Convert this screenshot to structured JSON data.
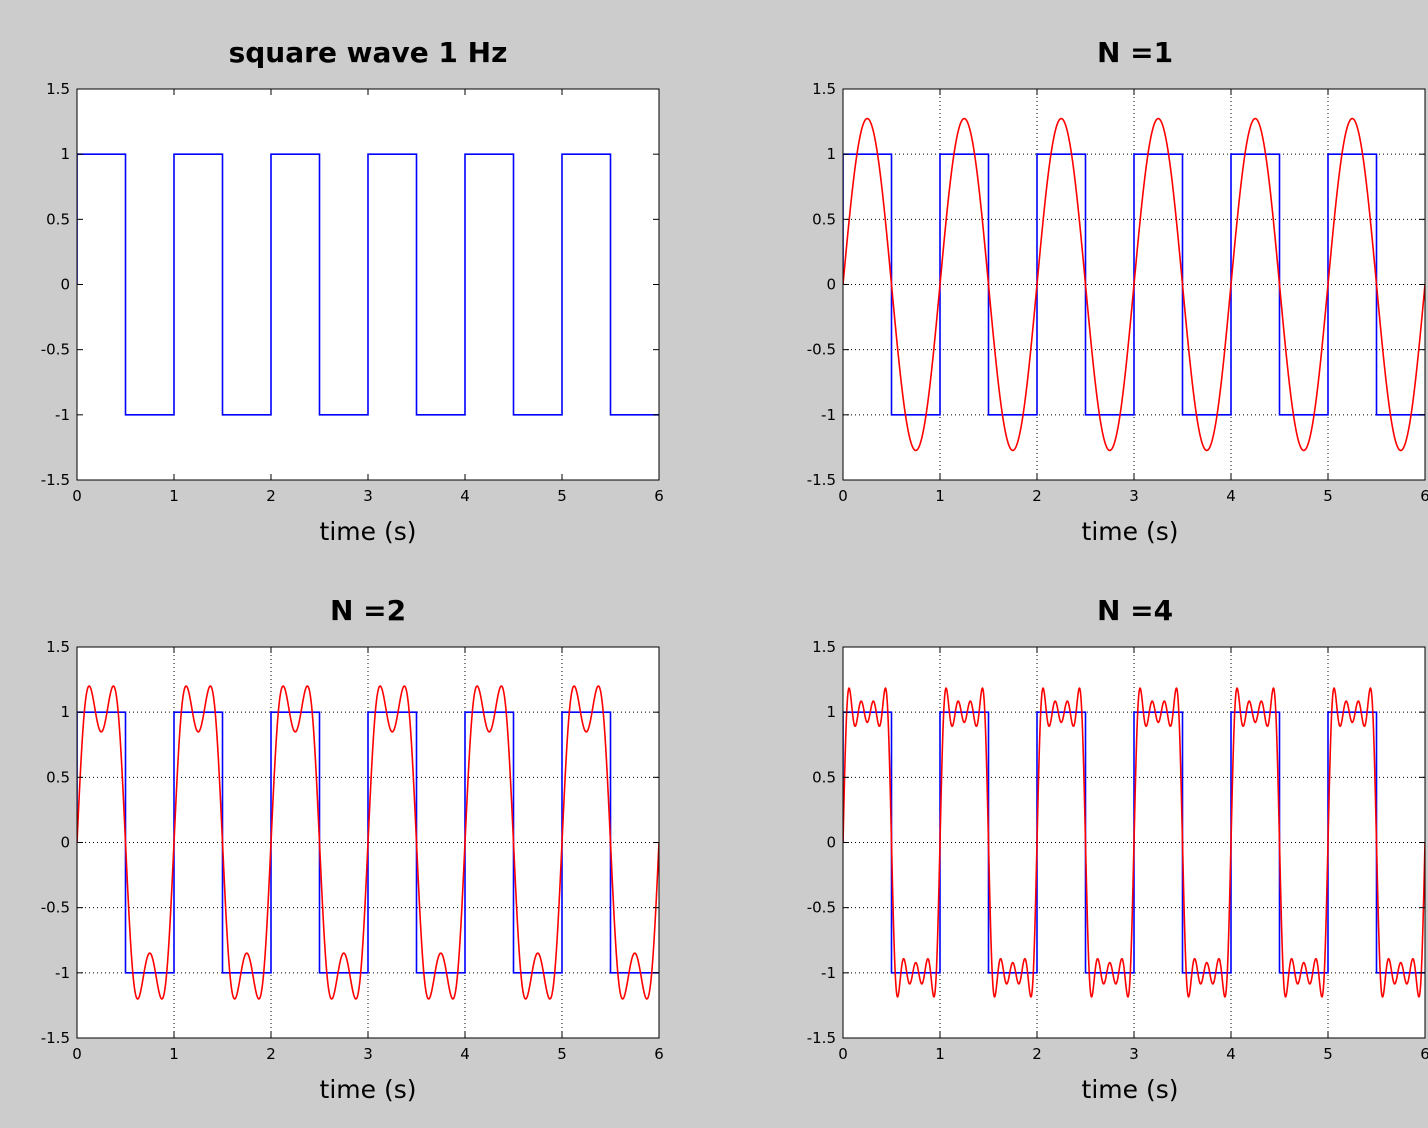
{
  "figure": {
    "background": "#cccccc",
    "axes_background": "#ffffff"
  },
  "chart_data": [
    {
      "type": "line",
      "title": "square wave 1 Hz",
      "xlabel": "time (s)",
      "ylabel": "",
      "xlim": [
        0,
        6
      ],
      "ylim": [
        -1.5,
        1.5
      ],
      "xticks": [
        0,
        1,
        2,
        3,
        4,
        5,
        6
      ],
      "yticks": [
        -1.5,
        -1,
        -0.5,
        0,
        0.5,
        1,
        1.5
      ],
      "xtick_labels": [
        "0",
        "1",
        "2",
        "3",
        "4",
        "5",
        "6"
      ],
      "ytick_labels": [
        "-1.5",
        "-1",
        "-0.5",
        "0",
        "0.5",
        "1",
        "1.5"
      ],
      "grid": false,
      "series": [
        {
          "kind": "square",
          "frequency": 1,
          "amplitude": 1,
          "color": "#0000ff"
        }
      ]
    },
    {
      "type": "line",
      "title": "N =1",
      "xlabel": "time (s)",
      "ylabel": "",
      "xlim": [
        0,
        6
      ],
      "ylim": [
        -1.5,
        1.5
      ],
      "xticks": [
        0,
        1,
        2,
        3,
        4,
        5,
        6
      ],
      "yticks": [
        -1.5,
        -1,
        -0.5,
        0,
        0.5,
        1,
        1.5
      ],
      "xtick_labels": [
        "0",
        "1",
        "2",
        "3",
        "4",
        "5",
        "6"
      ],
      "ytick_labels": [
        "-1.5",
        "-1",
        "-0.5",
        "0",
        "0.5",
        "1",
        "1.5"
      ],
      "grid": true,
      "series": [
        {
          "kind": "square",
          "frequency": 1,
          "amplitude": 1,
          "color": "#0000ff"
        },
        {
          "kind": "fourier",
          "frequency": 1,
          "terms": 1,
          "color": "#ff0000"
        }
      ]
    },
    {
      "type": "line",
      "title": "N =2",
      "xlabel": "time (s)",
      "ylabel": "",
      "xlim": [
        0,
        6
      ],
      "ylim": [
        -1.5,
        1.5
      ],
      "xticks": [
        0,
        1,
        2,
        3,
        4,
        5,
        6
      ],
      "yticks": [
        -1.5,
        -1,
        -0.5,
        0,
        0.5,
        1,
        1.5
      ],
      "xtick_labels": [
        "0",
        "1",
        "2",
        "3",
        "4",
        "5",
        "6"
      ],
      "ytick_labels": [
        "-1.5",
        "-1",
        "-0.5",
        "0",
        "0.5",
        "1",
        "1.5"
      ],
      "grid": true,
      "series": [
        {
          "kind": "square",
          "frequency": 1,
          "amplitude": 1,
          "color": "#0000ff"
        },
        {
          "kind": "fourier",
          "frequency": 1,
          "terms": 2,
          "color": "#ff0000"
        }
      ]
    },
    {
      "type": "line",
      "title": "N =4",
      "xlabel": "time (s)",
      "ylabel": "",
      "xlim": [
        0,
        6
      ],
      "ylim": [
        -1.5,
        1.5
      ],
      "xticks": [
        0,
        1,
        2,
        3,
        4,
        5,
        6
      ],
      "yticks": [
        -1.5,
        -1,
        -0.5,
        0,
        0.5,
        1,
        1.5
      ],
      "xtick_labels": [
        "0",
        "1",
        "2",
        "3",
        "4",
        "5",
        "6"
      ],
      "ytick_labels": [
        "-1.5",
        "-1",
        "-0.5",
        "0",
        "0.5",
        "1",
        "1.5"
      ],
      "grid": true,
      "series": [
        {
          "kind": "square",
          "frequency": 1,
          "amplitude": 1,
          "color": "#0000ff"
        },
        {
          "kind": "fourier",
          "frequency": 1,
          "terms": 4,
          "color": "#ff0000"
        }
      ]
    }
  ]
}
